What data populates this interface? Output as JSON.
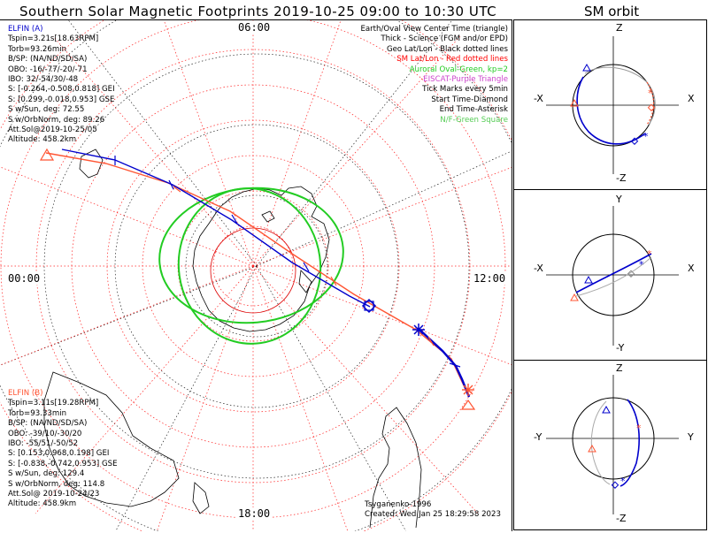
{
  "title": "Southern Solar Magnetic Footprints 2019-10-25 09:00 to 10:30 UTC",
  "sm_orbit_title": "SM orbit",
  "colors": {
    "elfin_a": "#0000cc",
    "elfin_b": "#ff5533",
    "auroral": "#22cc22",
    "geo_grid": "#000000",
    "sm_grid": "#ff2020",
    "eiscat": "#cc44cc",
    "nf": "#55cc55"
  },
  "clock_labels": {
    "top": "06:00",
    "left": "00:00",
    "right": "12:00",
    "bottom": "18:00"
  },
  "elfin_a": {
    "name": "ELFIN (A)",
    "lines": [
      "Tspin=3.21s[18.63RPM]",
      "Torb=93.26min",
      "B/SP: (NA/ND/SD/SA)",
      "OBO: -16/-77/-20/-71",
      "IBO: 32/-54/30/-48",
      "S: [-0.264,-0.508,0.818] GEI",
      "S: [0.299,-0.018,0.953] GSE",
      "S w/Sun, deg: 72.55",
      "S w/OrbNorm, deg: 89.26",
      "Att.Sol@2019-10-25/05",
      "Altitude: 458.2km"
    ]
  },
  "elfin_b": {
    "name": "ELFIN (B)",
    "lines": [
      "Tspin=3.11s[19.28RPM]",
      "Torb=93.33min",
      "B/SP: (NA/ND/SD/SA)",
      "OBO: -39/10/-30/20",
      "IBO: -55/51/-50/52",
      "S: [0.153,0.968,0.198] GEI",
      "S: [-0.838,-0.742,0.953] GSE",
      "S w/Sun, deg: 129.4",
      "S w/OrbNorm, deg: 114.8",
      "Att.Sol@ 2019-10-24/23",
      "Altitude: 458.9km"
    ]
  },
  "legend": [
    {
      "text": "Earth/Oval View Center Time (triangle)",
      "color": "#000000"
    },
    {
      "text": "Thick - Science (FGM and/or EPD)",
      "color": "#000000"
    },
    {
      "text": "Geo Lat/Lon - Black dotted lines",
      "color": "#000000"
    },
    {
      "text": "SM Lat/Lon - Red dotted lines",
      "color": "#ff0000"
    },
    {
      "text": "Auroral Oval-Green, kp=2",
      "color": "#22cc22"
    },
    {
      "text": "EISCAT-Purple Triangle",
      "color": "#cc44cc"
    },
    {
      "text": "Tick Marks every 5min",
      "color": "#000000"
    },
    {
      "text": "Start Time-Diamond",
      "color": "#000000"
    },
    {
      "text": "End Time-Asterisk",
      "color": "#000000"
    },
    {
      "text": "N/F-Green Square",
      "color": "#55cc55"
    }
  ],
  "credits": {
    "author": "Tsyganenko-1996",
    "created": "Created: Wed Jan 25 18:29:58 2023"
  },
  "sm_panels": [
    {
      "top": "Z",
      "bottom": "-Z",
      "left": "-X",
      "right": "X"
    },
    {
      "top": "Y",
      "bottom": "-Y",
      "left": "-X",
      "right": "X"
    },
    {
      "top": "Z",
      "bottom": "-Z",
      "left": "-Y",
      "right": "Y"
    }
  ]
}
